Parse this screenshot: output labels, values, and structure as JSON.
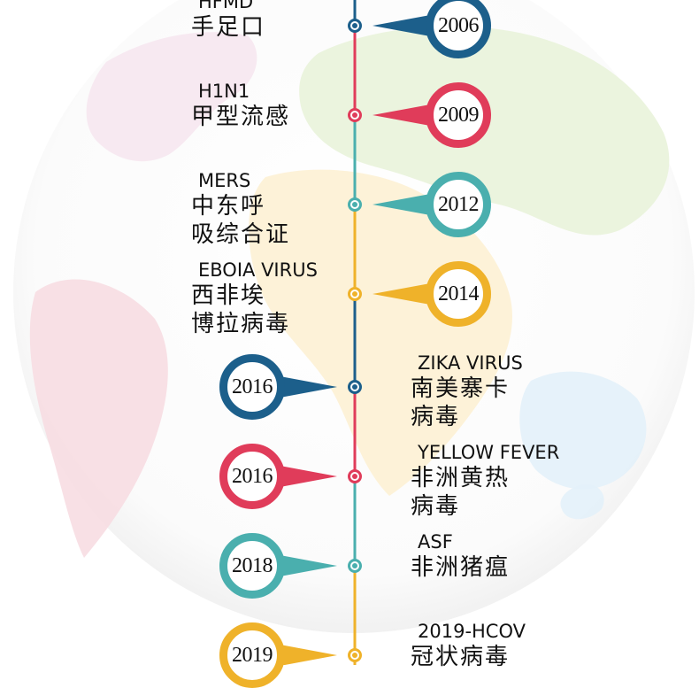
{
  "colors": {
    "navy": "#1c5f8b",
    "crimson": "#e03c5a",
    "teal": "#4aafae",
    "amber": "#efb22a"
  },
  "events": [
    {
      "year": "2006",
      "en": "HFMD",
      "zh": [
        "手足口"
      ],
      "color": "navy",
      "side": "left-text"
    },
    {
      "year": "2009",
      "en": "H1N1",
      "zh": [
        "甲型流感"
      ],
      "color": "crimson",
      "side": "left-text"
    },
    {
      "year": "2012",
      "en": "MERS",
      "zh": [
        "中东呼",
        "吸综合证"
      ],
      "color": "teal",
      "side": "left-text"
    },
    {
      "year": "2014",
      "en": "EBOIA VIRUS",
      "zh": [
        "西非埃",
        "博拉病毒"
      ],
      "color": "amber",
      "side": "left-text"
    },
    {
      "year": "2016",
      "en": "ZIKA VIRUS",
      "zh": [
        "南美寨卡",
        "病毒"
      ],
      "color": "navy",
      "side": "right-text"
    },
    {
      "year": "2016",
      "en": "YELLOW FEVER",
      "zh": [
        "非洲黄热",
        "病毒"
      ],
      "color": "crimson",
      "side": "right-text"
    },
    {
      "year": "2018",
      "en": "ASF",
      "zh": [
        "非洲猪瘟"
      ],
      "color": "teal",
      "side": "right-text"
    },
    {
      "year": "2019",
      "en": "2019-HCOV",
      "zh": [
        "冠状病毒"
      ],
      "color": "amber",
      "side": "right-text"
    }
  ]
}
